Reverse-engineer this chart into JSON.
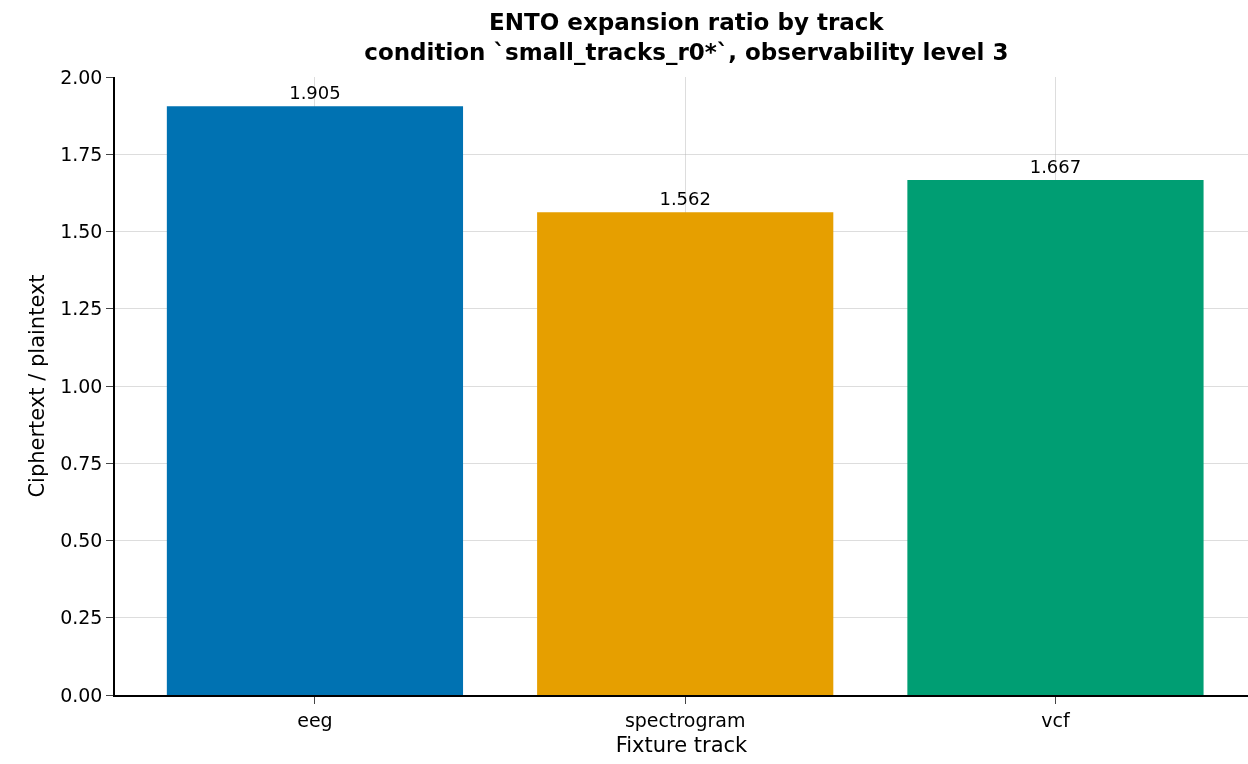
{
  "chart_data": {
    "type": "bar",
    "title": "ENTO expansion ratio by track\ncondition `small_tracks_r0*`, observability level 3",
    "xlabel": "Fixture track",
    "ylabel": "Ciphertext / plaintext",
    "categories": [
      "eeg",
      "spectrogram",
      "vcf"
    ],
    "values": [
      1.905,
      1.562,
      1.667
    ],
    "colors": [
      "#0072b2",
      "#e69f00",
      "#009e73"
    ],
    "ylim": [
      0,
      2
    ],
    "yticks": [
      {
        "value": 0,
        "label": "0.00"
      },
      {
        "value": 0.25,
        "label": "0.25"
      },
      {
        "value": 0.5,
        "label": "0.50"
      },
      {
        "value": 0.75,
        "label": "0.75"
      },
      {
        "value": 1,
        "label": "1.00"
      },
      {
        "value": 1.25,
        "label": "1.25"
      },
      {
        "value": 1.5,
        "label": "1.50"
      },
      {
        "value": 1.75,
        "label": "1.75"
      },
      {
        "value": 2,
        "label": "2.00"
      }
    ],
    "grid": true,
    "data_labels": true
  }
}
